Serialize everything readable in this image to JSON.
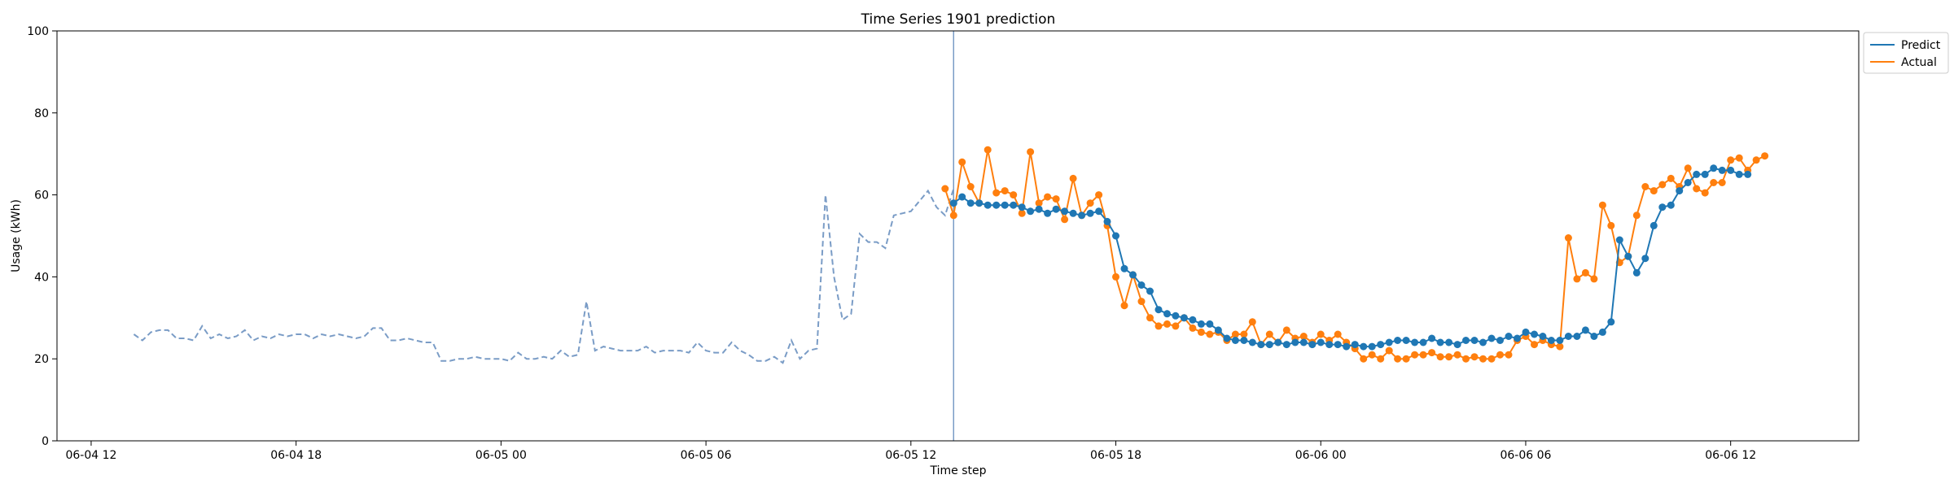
{
  "chart_data": {
    "type": "line",
    "title": "Time Series 1901 prediction",
    "xlabel": "Time step",
    "ylabel": "Usage (kWh)",
    "x_unit": "datetime",
    "x_start": "2023-06-04 11:00",
    "x_end": "2023-06-06 15:45",
    "ylim": [
      0,
      100
    ],
    "yticks": [
      0,
      20,
      40,
      60,
      80,
      100
    ],
    "xticks": [
      {
        "at": "2023-06-04 12:00",
        "label": "06-04 12"
      },
      {
        "at": "2023-06-04 18:00",
        "label": "06-04 18"
      },
      {
        "at": "2023-06-05 00:00",
        "label": "06-05 00"
      },
      {
        "at": "2023-06-05 06:00",
        "label": "06-05 06"
      },
      {
        "at": "2023-06-05 12:00",
        "label": "06-05 12"
      },
      {
        "at": "2023-06-05 18:00",
        "label": "06-05 18"
      },
      {
        "at": "2023-06-06 00:00",
        "label": "06-06 00"
      },
      {
        "at": "2023-06-06 06:00",
        "label": "06-06 06"
      },
      {
        "at": "2023-06-06 12:00",
        "label": "06-06 12"
      }
    ],
    "grid": false,
    "legend_position": "outside-top-right",
    "forecast_start": "2023-06-05 13:15",
    "colors": {
      "predict": "#1f77b4",
      "actual": "#ff7f0e",
      "history": "#7a9cc6",
      "split": "#7a9cc6"
    },
    "history": {
      "start": "2023-06-04 13:15",
      "step_minutes": 15,
      "values": [
        26,
        24.5,
        26.5,
        27,
        27,
        25,
        25,
        24.5,
        28,
        25,
        26,
        25,
        25.5,
        27,
        24.5,
        25.5,
        25,
        26,
        25.5,
        26,
        26,
        25,
        26,
        25.5,
        26,
        25.5,
        25,
        25.5,
        27.5,
        27.5,
        24.5,
        24.5,
        25,
        24.5,
        24,
        24,
        19.5,
        19.5,
        20,
        20,
        20.5,
        20,
        20,
        20,
        19.5,
        21.5,
        20,
        20,
        20.5,
        20,
        22,
        20.5,
        21,
        34,
        22,
        23,
        22.5,
        22,
        22,
        22,
        23,
        21.5,
        22,
        22,
        22,
        21.5,
        24,
        22,
        21.5,
        21.5,
        24,
        22,
        21,
        19.5,
        19.5,
        20.5,
        19,
        24.5,
        20,
        22,
        22.5,
        60,
        40,
        29.5,
        31,
        50.5,
        48.5,
        48.5,
        47,
        55,
        55.5,
        56,
        58.5,
        61,
        57,
        55,
        61.5
      ]
    },
    "series": [
      {
        "name": "Predict",
        "start": "2023-06-05 13:15",
        "step_minutes": 15,
        "values": [
          58,
          59.5,
          58,
          58,
          57.5,
          57.5,
          57.5,
          57.5,
          57,
          56,
          56.5,
          55.5,
          56.5,
          56,
          55.5,
          55,
          55.5,
          56,
          53.5,
          50,
          42,
          40.5,
          38,
          36.5,
          32,
          31,
          30.5,
          30,
          29.5,
          28.5,
          28.5,
          27,
          25,
          24.5,
          24.5,
          24,
          23.5,
          23.5,
          24,
          23.5,
          24,
          24,
          23.5,
          24,
          23.5,
          23.5,
          23,
          23.5,
          23,
          23,
          23.5,
          24,
          24.5,
          24.5,
          24,
          24,
          25,
          24,
          24,
          23.5,
          24.5,
          24.5,
          24,
          25,
          24.5,
          25.5,
          25,
          26.5,
          26,
          25.5,
          24.5,
          24.5,
          25.5,
          25.5,
          27,
          25.5,
          26.5,
          29,
          49,
          45,
          41,
          44.5,
          52.5,
          57,
          57.5,
          61,
          63,
          65,
          65,
          66.5,
          66,
          66,
          65,
          65
        ]
      },
      {
        "name": "Actual",
        "start": "2023-06-05 13:00",
        "step_minutes": 15,
        "values": [
          61.5,
          55,
          68,
          62,
          58,
          71,
          60.5,
          61,
          60,
          55.5,
          70.5,
          58,
          59.5,
          59,
          54,
          64,
          55,
          58,
          60,
          52.5,
          40,
          33,
          40.5,
          34,
          30,
          28,
          28.5,
          28,
          30,
          27.5,
          26.5,
          26,
          26.5,
          24.5,
          26,
          26,
          29,
          23.5,
          26,
          24,
          27,
          25,
          25.5,
          24,
          26,
          24.5,
          26,
          24,
          22.5,
          20,
          21,
          20,
          22,
          20,
          20,
          21,
          21,
          21.5,
          20.5,
          20.5,
          21,
          20,
          20.5,
          20,
          20,
          21,
          21,
          24.5,
          25.5,
          23.5,
          24.5,
          23.5,
          23,
          49.5,
          39.5,
          41,
          39.5,
          57.5,
          52.5,
          43.5,
          45,
          55,
          62,
          61,
          62.5,
          64,
          62,
          66.5,
          61.5,
          60.5,
          63,
          63,
          68.5,
          69,
          66,
          68.5,
          69.5
        ]
      }
    ]
  }
}
